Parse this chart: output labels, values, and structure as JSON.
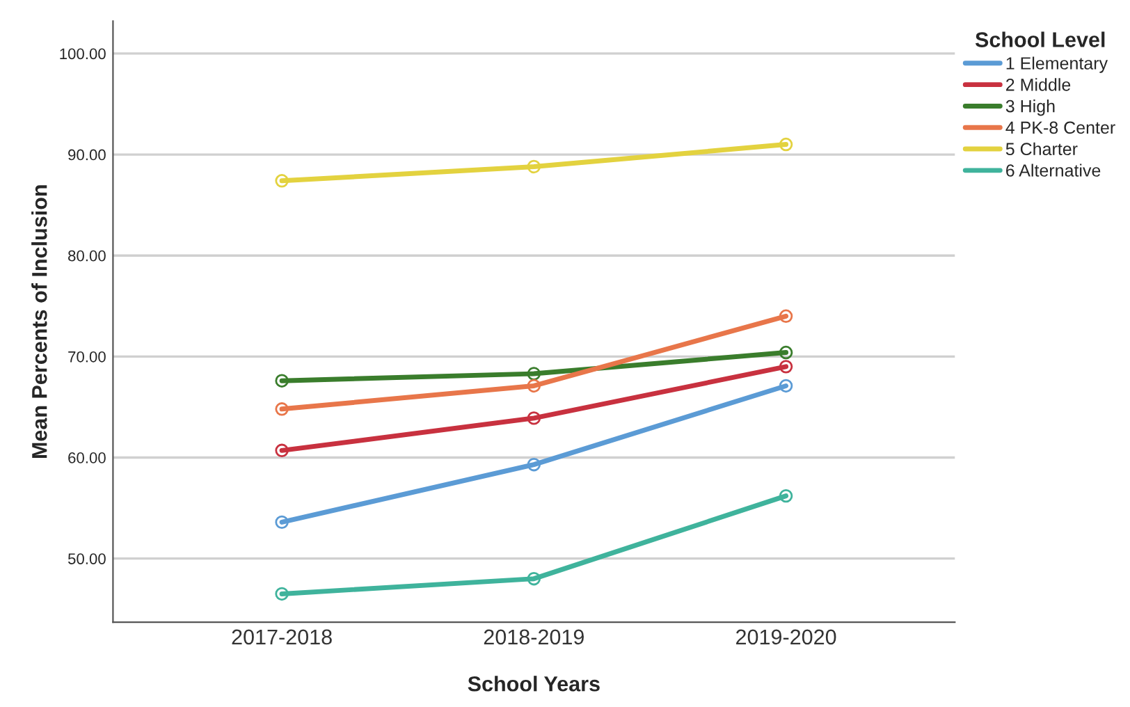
{
  "chart_data": {
    "type": "line",
    "xlabel": "School Years",
    "ylabel": "Mean Percents of Inclusion",
    "legend_title": "School Level",
    "categories": [
      "2017-2018",
      "2018-2019",
      "2019-2020"
    ],
    "series": [
      {
        "name": "1 Elementary",
        "color": "#5b9bd5",
        "values": [
          53.6,
          59.3,
          67.1
        ]
      },
      {
        "name": "2 Middle",
        "color": "#c8313f",
        "values": [
          60.7,
          63.9,
          69.0
        ]
      },
      {
        "name": "3 High",
        "color": "#3a7d2c",
        "values": [
          67.6,
          68.3,
          70.4
        ]
      },
      {
        "name": "4 PK-8 Center",
        "color": "#e8764a",
        "values": [
          64.8,
          67.1,
          74.0
        ]
      },
      {
        "name": "5 Charter",
        "color": "#e3d23f",
        "values": [
          87.4,
          88.8,
          91.0
        ]
      },
      {
        "name": "6 Alternative",
        "color": "#3fb39c",
        "values": [
          46.5,
          48.0,
          56.2
        ]
      }
    ],
    "ylim": [
      43.7,
      103.2
    ],
    "yticks": [
      {
        "value": 50,
        "label": "50.00"
      },
      {
        "value": 60,
        "label": "60.00"
      },
      {
        "value": 70,
        "label": "70.00"
      },
      {
        "value": 80,
        "label": "80.00"
      },
      {
        "value": 90,
        "label": "90.00"
      },
      {
        "value": 100,
        "label": "100.00"
      }
    ],
    "grid": "y",
    "legend": "top right",
    "marker": "circle",
    "line_style": "solid"
  }
}
